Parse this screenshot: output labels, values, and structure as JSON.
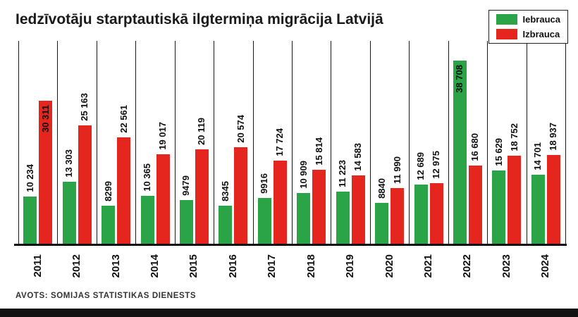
{
  "header": {
    "title": "Iedzīvotāju starptautiskā ilgtermiņa migrācija Latvijā"
  },
  "legend": [
    {
      "label": "Iebrauca",
      "color": "#2ba447"
    },
    {
      "label": "Izbrauca",
      "color": "#e5261f"
    }
  ],
  "footer": {
    "source": "AVOTS: SOMIJAS STATISTIKAS DIENESTS"
  },
  "chart_data": {
    "type": "bar",
    "title": "Iedzīvotāju starptautiskā ilgtermiņa migrācija Latvijā",
    "categories": [
      "2011",
      "2012",
      "2013",
      "2014",
      "2015",
      "2016",
      "2017",
      "2018",
      "2019",
      "2020",
      "2021",
      "2022",
      "2023",
      "2024"
    ],
    "series": [
      {
        "name": "Iebrauca",
        "color": "#2ba447",
        "values": [
          10234,
          13303,
          8299,
          10365,
          9479,
          8345,
          9916,
          10909,
          11223,
          8840,
          12689,
          38708,
          15629,
          14701
        ],
        "labels": [
          "10 234",
          "13 303",
          "8299",
          "10 365",
          "9479",
          "8345",
          "9916",
          "10 909",
          "11 223",
          "8840",
          "12 689",
          "38 708",
          "15 629",
          "14 701"
        ]
      },
      {
        "name": "Izbrauca",
        "color": "#e5261f",
        "values": [
          30311,
          25163,
          22561,
          19017,
          20119,
          20574,
          17724,
          15814,
          14583,
          11990,
          12975,
          16680,
          18752,
          18937
        ],
        "labels": [
          "30 311",
          "25 163",
          "22 561",
          "19 017",
          "20 119",
          "20 574",
          "17 724",
          "15 814",
          "14 583",
          "11 990",
          "12 975",
          "16 680",
          "18 752",
          "18 937"
        ]
      }
    ],
    "xlabel": "",
    "ylabel": "",
    "ylim": [
      0,
      40000
    ],
    "grid": "vertical-group-separators",
    "legend_position": "top-right",
    "value_labels": "rotated-90-above-bars"
  }
}
